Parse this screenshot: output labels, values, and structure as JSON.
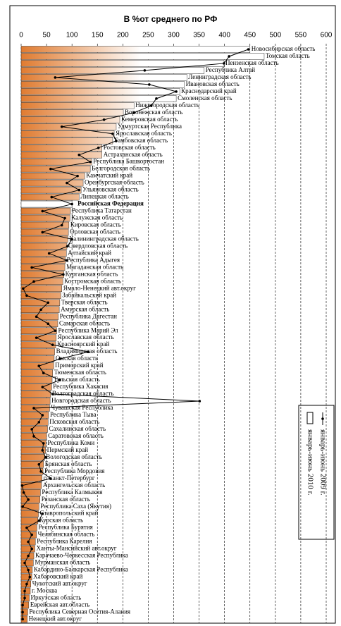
{
  "chart_data": {
    "type": "bar",
    "orientation": "horizontal",
    "title": "В %от среднего по РФ",
    "categories": [
      "Новосибирская область",
      "Томская область",
      "Пензенская область",
      "Республика Алтай",
      "Ленинградская область",
      "Ивановская область",
      "Краснодарский край",
      "Смоленская область",
      "Нижегородская область",
      "Воронежская область",
      "Кемеровская область",
      "Удмуртская Республика",
      "Ярославская область",
      "Тамбовская область",
      "Ростовская область",
      "Астраханская область",
      "Республика Башкортостан",
      "Белгородская область",
      "Камчатский край",
      "Оренбургская область",
      "Ульяновская область",
      "Липецкая область",
      "Российская Федерация",
      "Республика Татарстан",
      "Калужская область",
      "Кировская область",
      "Орловская область",
      "Калининградская область",
      "Свердловская область",
      "Алтайский край",
      "Республика Адыгея",
      "Магаданская область",
      "Курганская область",
      "Костромская область",
      "Ямало-Ненецкий авт.округ",
      "Забайкальский край",
      "Тверская область",
      "Амурская область",
      "Республика Дагестан",
      "Самарская область",
      "Республика Марий Эл",
      "Ярославская область",
      "Красноярский край",
      "Владимирская область",
      "Омская область",
      "Приморский край",
      "Тюменская область",
      "Тульская область",
      "Республика Хакасия",
      "Волгоградская область",
      "Новгородская область",
      "Чувашская Республика",
      "Республика Тыва",
      "Псковская область",
      "Сахалинская область",
      "Саратовская область",
      "Республика Коми",
      "Пермский край",
      "Вологодская область",
      "Брянская область",
      "Республика Мордовия",
      "г. Санкт-Петербург",
      "Архангельская область",
      "Республика Калмыкия",
      "Рязанская область",
      "Республика Саха (Якутия)",
      "Ставропольский край",
      "Курская область",
      "Республика Бурятия",
      "Челябинская область",
      "Республика Карелия",
      "Ханты-Мансийский авт.округ",
      "Карачаево-Черкесская Республика",
      "Мурманская область",
      "Кабардино-Балкарская Республика",
      "Хабаровский край",
      "Чукотский авт.округ",
      "г. Москва",
      "Иркутская область",
      "Еврейская авт.область",
      "Республика Северная Осетия-Алания",
      "Ненецкий авт.округ"
    ],
    "series": [
      {
        "name": "январь-июнь 2010 г.",
        "type": "bar",
        "color": "#e07b30",
        "values": [
          450,
          478,
          399,
          360,
          326,
          321,
          312,
          305,
          222,
          201,
          194,
          187,
          183,
          180,
          159,
          159,
          139,
          136,
          125,
          122,
          118,
          114,
          100,
          97,
          96,
          94,
          93,
          92,
          90,
          89,
          87,
          86,
          84,
          82,
          80,
          78,
          76,
          75,
          73,
          72,
          70,
          69,
          68,
          66,
          65,
          64,
          62,
          61,
          60,
          58,
          57,
          56,
          54,
          53,
          52,
          50,
          49,
          48,
          46,
          44,
          43,
          41,
          40,
          38,
          37,
          35,
          34,
          33,
          31,
          30,
          28,
          27,
          25,
          24,
          22,
          21,
          19,
          18,
          16,
          15,
          13,
          12
        ]
      },
      {
        "name": "январь-июнь 2009 г.",
        "type": "line",
        "color": "#000000",
        "values": [
          447,
          409,
          399,
          243,
          67,
          252,
          305,
          266,
          256,
          222,
          163,
          80,
          180,
          187,
          152,
          114,
          136,
          58,
          111,
          90,
          114,
          60,
          100,
          42,
          86,
          80,
          42,
          100,
          91,
          55,
          90,
          21,
          83,
          25,
          4,
          11,
          53,
          39,
          30,
          53,
          67,
          30,
          62,
          132,
          76,
          35,
          44,
          76,
          42,
          62,
          351,
          25,
          42,
          35,
          21,
          25,
          44,
          42,
          48,
          35,
          39,
          58,
          2,
          5,
          14,
          3,
          42,
          35,
          11,
          21,
          14,
          21,
          14,
          7,
          14,
          17,
          11,
          7,
          7,
          3,
          3,
          3
        ]
      }
    ],
    "highlight_index": 22,
    "xlim": [
      0,
      600
    ],
    "xticks": [
      0,
      50,
      100,
      150,
      200,
      250,
      300,
      350,
      400,
      450,
      500,
      550,
      600
    ],
    "grid": true
  }
}
